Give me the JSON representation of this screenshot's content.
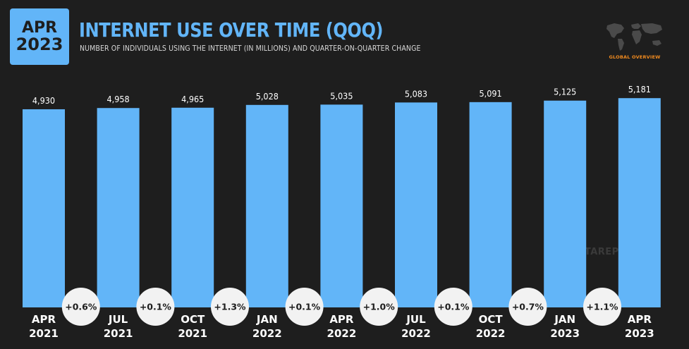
{
  "badge": {
    "month": "APR",
    "year": "2023"
  },
  "header": {
    "title": "INTERNET USE OVER TIME (QOQ)",
    "subtitle": "NUMBER OF INDIVIDUALS USING THE INTERNET (IN MILLIONS) AND QUARTER-ON-QUARTER CHANGE"
  },
  "global_label": "GLOBAL OVERVIEW",
  "watermark": "DATAREPORTAL",
  "colors": {
    "bar": "#62b5f8",
    "background": "#1e1e1e",
    "change_circle": "#f2f2f2",
    "accent": "#f08a1e"
  },
  "chart_data": {
    "type": "bar",
    "title": "INTERNET USE OVER TIME (QOQ)",
    "categories": [
      [
        "APR",
        "2021"
      ],
      [
        "JUL",
        "2021"
      ],
      [
        "OCT",
        "2021"
      ],
      [
        "JAN",
        "2022"
      ],
      [
        "APR",
        "2022"
      ],
      [
        "JUL",
        "2022"
      ],
      [
        "OCT",
        "2022"
      ],
      [
        "JAN",
        "2023"
      ],
      [
        "APR",
        "2023"
      ]
    ],
    "values": [
      4930,
      4958,
      4965,
      5028,
      5035,
      5083,
      5091,
      5125,
      5181
    ],
    "value_labels": [
      "4,930",
      "4,958",
      "4,965",
      "5,028",
      "5,035",
      "5,083",
      "5,091",
      "5,125",
      "5,181"
    ],
    "qoq_change": [
      "+0.6%",
      "+0.1%",
      "+1.3%",
      "+0.1%",
      "+1.0%",
      "+0.1%",
      "+0.7%",
      "+1.1%"
    ],
    "ylim": [
      0,
      5500
    ],
    "grid": false
  }
}
